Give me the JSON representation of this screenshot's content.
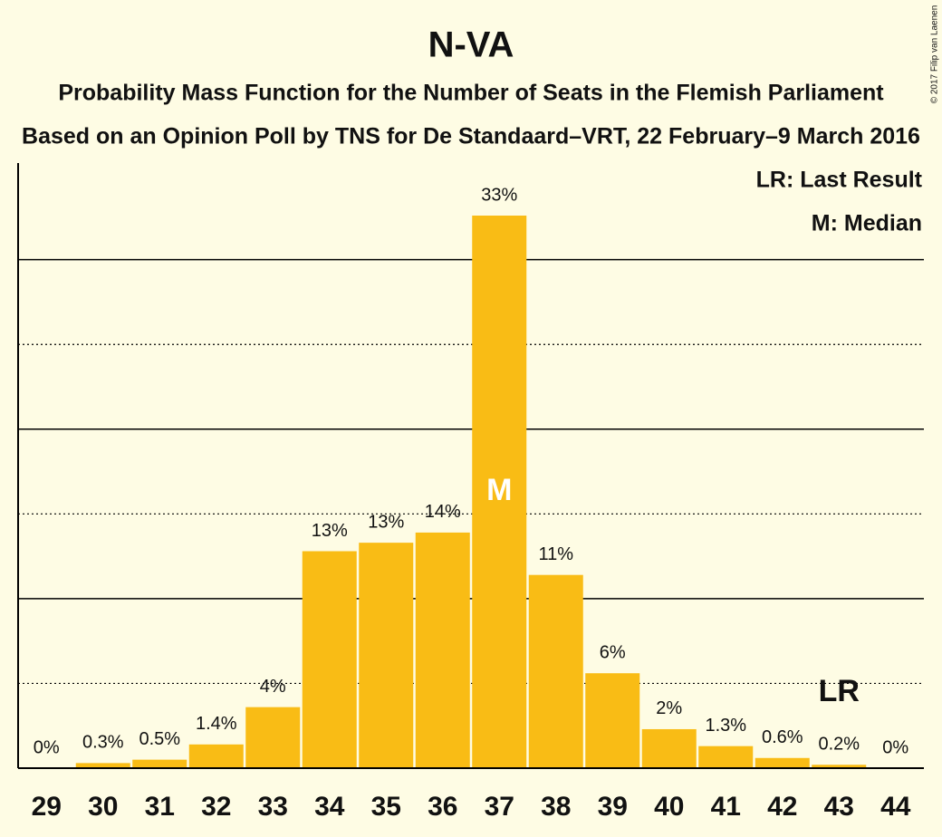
{
  "chart_data": {
    "type": "bar",
    "title": "N-VA",
    "subtitle": "Probability Mass Function for the Number of Seats in the Flemish Parliament",
    "subtitle2": "Based on an Opinion Poll by TNS for De Standaard–VRT, 22 February–9 March 2016",
    "copyright": "© 2017 Filip van Laenen",
    "legend": [
      "LR: Last Result",
      "M: Median"
    ],
    "categories": [
      "29",
      "30",
      "31",
      "32",
      "33",
      "34",
      "35",
      "36",
      "37",
      "38",
      "39",
      "40",
      "41",
      "42",
      "43",
      "44"
    ],
    "values": [
      0,
      0.3,
      0.5,
      1.4,
      3.6,
      12.8,
      13.3,
      13.9,
      32.6,
      11.4,
      5.6,
      2.3,
      1.3,
      0.6,
      0.2,
      0
    ],
    "value_labels": [
      "0%",
      "0.3%",
      "0.5%",
      "1.4%",
      "4%",
      "13%",
      "13%",
      "14%",
      "33%",
      "11%",
      "6%",
      "2%",
      "1.3%",
      "0.6%",
      "0.2%",
      "0%"
    ],
    "markers": [
      {
        "label": "M",
        "category": "37"
      },
      {
        "label": "LR",
        "category": "43"
      }
    ],
    "color": "#f9bc15",
    "ylim": [
      0,
      35.7
    ],
    "yticks": [
      5,
      10,
      15,
      20,
      25,
      30
    ],
    "grid": true
  }
}
